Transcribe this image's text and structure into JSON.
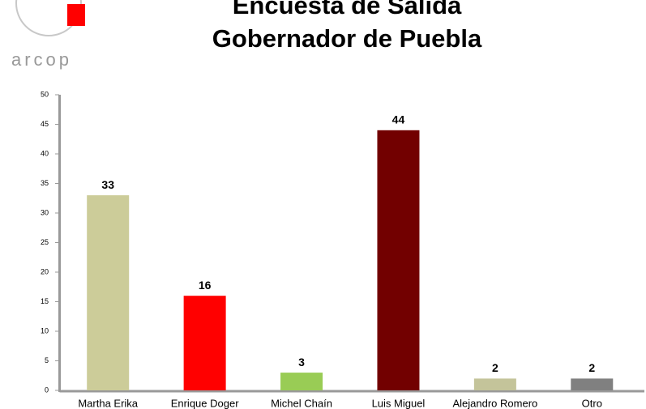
{
  "logo": "arcop",
  "chart_data": {
    "type": "bar",
    "title": "Encuesta de Salida",
    "subtitle": "Gobernador de Puebla",
    "categories": [
      "Martha Erika",
      "Enrique Doger",
      "Michel Chaín",
      "Luis Miguel",
      "Alejandro Romero",
      "Otro"
    ],
    "values": [
      33,
      16,
      3,
      44,
      2,
      2
    ],
    "colors": [
      "#cccc99",
      "#ff0000",
      "#99cc55",
      "#720000",
      "#c4c49a",
      "#808080"
    ],
    "ylim": [
      0,
      50
    ],
    "yticks": [
      0,
      5,
      10,
      15,
      20,
      25,
      30,
      35,
      40,
      45,
      50
    ]
  }
}
